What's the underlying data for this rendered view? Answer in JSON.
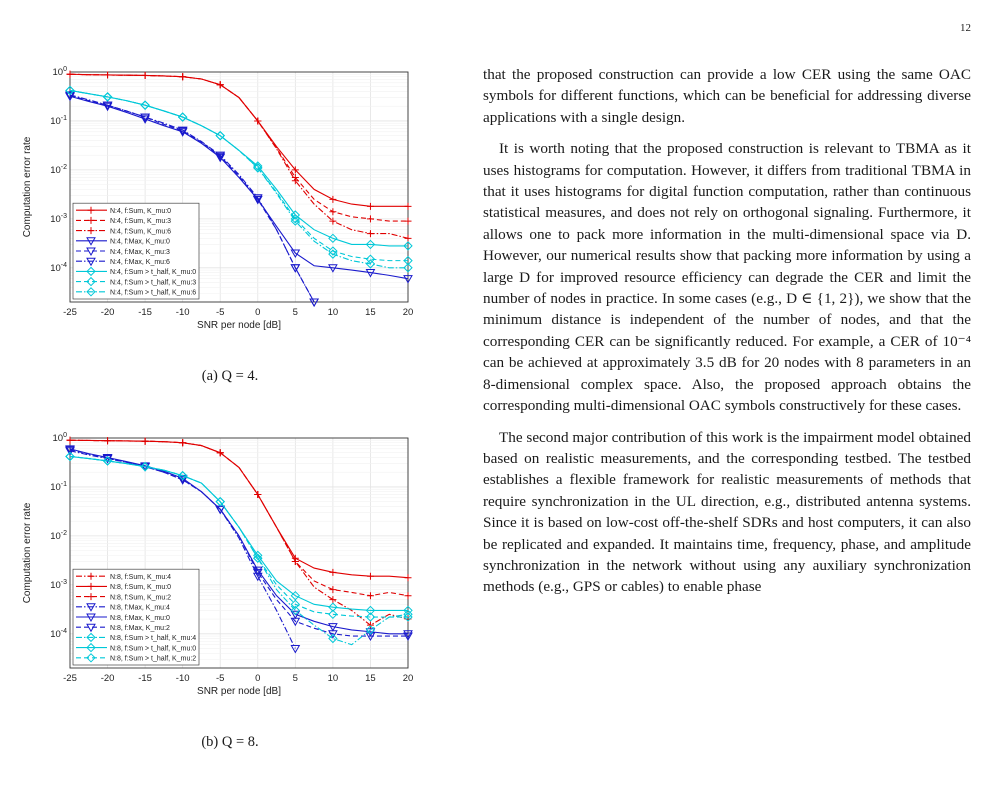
{
  "page_number": "12",
  "figures": [
    {
      "caption": "(a) Q = 4.",
      "chart_data": {
        "type": "line",
        "xlabel": "SNR per node [dB]",
        "ylabel": "Computation error rate",
        "xlim": [
          -25,
          20
        ],
        "ylim": [
          2e-05,
          1
        ],
        "yscale": "log",
        "grid": true,
        "legend_position": "bottom-left",
        "x_ticks": [
          "-25",
          "-20",
          "-15",
          "-10",
          "-5",
          "0",
          "5",
          "10",
          "15",
          "20"
        ],
        "y_ticks": [
          "10^0",
          "10^-1",
          "10^-2",
          "10^-3",
          "10^-4"
        ],
        "x": [
          -25,
          -22.5,
          -20,
          -17.5,
          -15,
          -12.5,
          -10,
          -7.5,
          -5,
          -2.5,
          0,
          2.5,
          5,
          7.5,
          10,
          12.5,
          15,
          17.5,
          20
        ],
        "series": [
          {
            "name": "N:4, f:Sum, K_mu:0",
            "color": "#e00000",
            "dash": "solid",
            "marker": "plus",
            "values": [
              0.9,
              0.88,
              0.87,
              0.86,
              0.85,
              0.83,
              0.8,
              0.72,
              0.55,
              0.3,
              0.1,
              0.03,
              0.01,
              0.004,
              0.0025,
              0.002,
              0.0018,
              0.0018,
              0.0018
            ]
          },
          {
            "name": "N:4, f:Sum, K_mu:3",
            "color": "#e00000",
            "dash": "dash",
            "marker": "plus",
            "values": [
              0.9,
              0.88,
              0.87,
              0.86,
              0.85,
              0.83,
              0.8,
              0.72,
              0.55,
              0.3,
              0.1,
              0.028,
              0.007,
              0.0025,
              0.0014,
              0.0011,
              0.001,
              0.0009,
              0.0009
            ]
          },
          {
            "name": "N:4, f:Sum, K_mu:6",
            "color": "#e00000",
            "dash": "dashdot",
            "marker": "plus",
            "values": [
              0.9,
              0.88,
              0.87,
              0.86,
              0.85,
              0.83,
              0.8,
              0.72,
              0.55,
              0.3,
              0.1,
              0.027,
              0.006,
              0.002,
              0.0009,
              0.0006,
              0.0005,
              0.0005,
              0.0004
            ]
          },
          {
            "name": "N:4, f:Max, K_mu:0",
            "color": "#1a1acc",
            "dash": "solid",
            "marker": "tri-down",
            "values": [
              0.32,
              0.25,
              0.2,
              0.15,
              0.11,
              0.08,
              0.06,
              0.035,
              0.018,
              0.007,
              0.0025,
              0.0007,
              0.0002,
              0.00011,
              0.0001,
              9e-05,
              8e-05,
              7e-05,
              6e-05
            ]
          },
          {
            "name": "N:4, f:Max, K_mu:3",
            "color": "#1a1acc",
            "dash": "dash",
            "marker": "tri-down",
            "values": [
              0.33,
              0.26,
              0.21,
              0.16,
              0.12,
              0.085,
              0.063,
              0.037,
              0.019,
              0.0075,
              0.0025,
              0.0006,
              0.0001,
              2e-05,
              null,
              null,
              null,
              null,
              null
            ]
          },
          {
            "name": "N:4, f:Max, K_mu:6",
            "color": "#1a1acc",
            "dash": "dashdot",
            "marker": "tri-down",
            "values": [
              0.34,
              0.27,
              0.21,
              0.16,
              0.12,
              0.09,
              0.065,
              0.038,
              0.02,
              0.008,
              0.0027,
              0.0006,
              0.0001,
              2e-05,
              null,
              null,
              null,
              null,
              null
            ]
          },
          {
            "name": "N:4, f:Sum > t_half, K_mu:0",
            "color": "#00c8d8",
            "dash": "solid",
            "marker": "diamond",
            "values": [
              0.42,
              0.36,
              0.31,
              0.26,
              0.21,
              0.16,
              0.12,
              0.08,
              0.05,
              0.025,
              0.012,
              0.004,
              0.0012,
              0.0006,
              0.0004,
              0.0003,
              0.0003,
              0.00028,
              0.00028
            ]
          },
          {
            "name": "N:4, f:Sum > t_half, K_mu:3",
            "color": "#00c8d8",
            "dash": "dash",
            "marker": "diamond",
            "values": [
              0.42,
              0.36,
              0.31,
              0.26,
              0.21,
              0.16,
              0.12,
              0.08,
              0.05,
              0.025,
              0.011,
              0.0035,
              0.001,
              0.0004,
              0.00022,
              0.00017,
              0.00015,
              0.00014,
              0.00014
            ]
          },
          {
            "name": "N:4, f:Sum > t_half, K_mu:6",
            "color": "#00c8d8",
            "dash": "dashdot",
            "marker": "diamond",
            "values": [
              0.42,
              0.36,
              0.31,
              0.26,
              0.21,
              0.16,
              0.12,
              0.08,
              0.05,
              0.025,
              0.011,
              0.0033,
              0.0009,
              0.00035,
              0.00019,
              0.00014,
              0.00012,
              0.0001,
              0.0001
            ]
          }
        ]
      }
    },
    {
      "caption": "(b) Q = 8.",
      "chart_data": {
        "type": "line",
        "xlabel": "SNR per node [dB]",
        "ylabel": "Computation error rate",
        "xlim": [
          -25,
          20
        ],
        "ylim": [
          2e-05,
          1
        ],
        "yscale": "log",
        "grid": true,
        "legend_position": "bottom-left",
        "x_ticks": [
          "-25",
          "-20",
          "-15",
          "-10",
          "-5",
          "0",
          "5",
          "10",
          "15",
          "20"
        ],
        "y_ticks": [
          "10^0",
          "10^-1",
          "10^-2",
          "10^-3",
          "10^-4"
        ],
        "x": [
          -25,
          -22.5,
          -20,
          -17.5,
          -15,
          -12.5,
          -10,
          -7.5,
          -5,
          -2.5,
          0,
          2.5,
          5,
          7.5,
          10,
          12.5,
          15,
          17.5,
          20
        ],
        "series": [
          {
            "name": "N:8, f:Sum, K_mu:4",
            "color": "#e00000",
            "dash": "dashdot",
            "marker": "plus",
            "values": [
              0.9,
              0.89,
              0.88,
              0.87,
              0.86,
              0.84,
              0.8,
              0.7,
              0.5,
              0.25,
              0.07,
              0.015,
              0.003,
              0.0009,
              0.0005,
              0.0003,
              0.00015,
              0.00025,
              0.0002
            ]
          },
          {
            "name": "N:8, f:Sum, K_mu:0",
            "color": "#e00000",
            "dash": "solid",
            "marker": "plus",
            "values": [
              0.9,
              0.89,
              0.88,
              0.87,
              0.86,
              0.84,
              0.8,
              0.7,
              0.5,
              0.25,
              0.07,
              0.015,
              0.0035,
              0.0022,
              0.0018,
              0.0016,
              0.0015,
              0.0015,
              0.0014
            ]
          },
          {
            "name": "N:8, f:Sum, K_mu:2",
            "color": "#e00000",
            "dash": "dash",
            "marker": "plus",
            "values": [
              0.9,
              0.89,
              0.88,
              0.87,
              0.86,
              0.84,
              0.8,
              0.7,
              0.5,
              0.25,
              0.07,
              0.015,
              0.003,
              0.0012,
              0.0008,
              0.0007,
              0.0006,
              0.0007,
              0.0006
            ]
          },
          {
            "name": "N:8, f:Max, K_mu:4",
            "color": "#1a1acc",
            "dash": "dashdot",
            "marker": "tri-down",
            "values": [
              0.55,
              0.45,
              0.38,
              0.32,
              0.26,
              0.2,
              0.14,
              0.08,
              0.035,
              0.009,
              0.0015,
              0.0003,
              5e-05,
              null,
              null,
              null,
              null,
              null,
              null
            ]
          },
          {
            "name": "N:8, f:Max, K_mu:0",
            "color": "#1a1acc",
            "dash": "solid",
            "marker": "tri-down",
            "values": [
              0.6,
              0.48,
              0.4,
              0.33,
              0.27,
              0.21,
              0.15,
              0.08,
              0.035,
              0.01,
              0.002,
              0.0006,
              0.00025,
              0.00018,
              0.00014,
              0.00012,
              0.00011,
              0.0001,
              0.0001
            ]
          },
          {
            "name": "N:8, f:Max, K_mu:2",
            "color": "#1a1acc",
            "dash": "dash",
            "marker": "tri-down",
            "values": [
              0.58,
              0.47,
              0.39,
              0.32,
              0.26,
              0.2,
              0.14,
              0.08,
              0.035,
              0.01,
              0.0018,
              0.0005,
              0.00018,
              0.00013,
              0.0001,
              9e-05,
              9e-05,
              9e-05,
              9e-05
            ]
          },
          {
            "name": "N:8, f:Sum > t_half, K_mu:4",
            "color": "#00c8d8",
            "dash": "dashdot",
            "marker": "diamond",
            "values": [
              0.42,
              0.38,
              0.34,
              0.3,
              0.26,
              0.22,
              0.17,
              0.12,
              0.05,
              0.015,
              0.0035,
              0.0008,
              0.0003,
              0.00015,
              8e-05,
              6e-05,
              0.00012,
              0.00022,
              0.00025
            ]
          },
          {
            "name": "N:8, f:Sum > t_half, K_mu:0",
            "color": "#00c8d8",
            "dash": "solid",
            "marker": "diamond",
            "values": [
              0.42,
              0.38,
              0.34,
              0.3,
              0.26,
              0.22,
              0.17,
              0.12,
              0.05,
              0.015,
              0.004,
              0.0012,
              0.0006,
              0.0004,
              0.00035,
              0.00032,
              0.0003,
              0.0003,
              0.0003
            ]
          },
          {
            "name": "N:8, f:Sum > t_half, K_mu:2",
            "color": "#00c8d8",
            "dash": "dash",
            "marker": "diamond",
            "values": [
              0.42,
              0.38,
              0.34,
              0.3,
              0.26,
              0.22,
              0.17,
              0.12,
              0.05,
              0.015,
              0.0035,
              0.001,
              0.0004,
              0.00028,
              0.00025,
              0.00023,
              0.00022,
              0.00022,
              0.00022
            ]
          }
        ]
      }
    }
  ],
  "body_paragraphs": [
    "that the proposed construction can provide a low CER using the same OAC symbols for different functions, which can be beneficial for addressing diverse applications with a single design.",
    "It is worth noting that the proposed construction is relevant to TBMA as it uses histograms for computation. However, it differs from traditional TBMA in that it uses histograms for digital function computation, rather than continuous statistical measures, and does not rely on orthogonal signaling. Furthermore, it allows one to pack more information in the multi-dimensional space via D. However, our numerical results show that packing more information by using a large D for improved resource efficiency can degrade the CER and limit the number of nodes in practice. In some cases (e.g., D ∈ {1, 2}), we show that the minimum distance is independent of the number of nodes, and that the corresponding CER can be significantly reduced. For example, a CER of 10⁻⁴ can be achieved at approximately 3.5 dB for 20 nodes with 8 parameters in an 8-dimensional complex space. Also, the proposed approach obtains the corresponding multi-dimensional OAC symbols constructively for these cases.",
    "The second major contribution of this work is the impairment model obtained based on realistic measurements, and the corresponding testbed. The testbed establishes a flexible framework for realistic measurements of methods that require synchronization in the UL direction, e.g., distributed antenna systems. Since it is based on low-cost off-the-shelf SDRs and host computers, it can also be replicated and expanded. It maintains time, frequency, phase, and amplitude synchronization in the network without using any auxiliary synchronization methods (e.g., GPS or cables) to enable phase"
  ]
}
